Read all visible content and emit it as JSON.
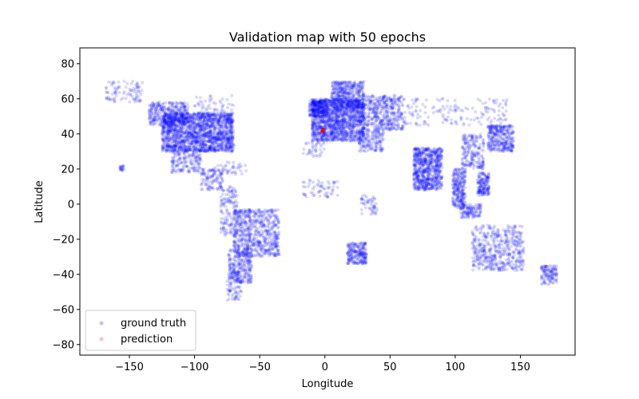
{
  "chart_data": {
    "type": "scatter",
    "title": "Validation map with 50 epochs",
    "xlabel": "Longitude",
    "ylabel": "Latitude",
    "xlim": [
      -188,
      192
    ],
    "ylim": [
      -86,
      89
    ],
    "xticks": [
      -150,
      -100,
      -50,
      0,
      50,
      100,
      150
    ],
    "yticks": [
      -80,
      -60,
      -40,
      -20,
      0,
      20,
      40,
      60,
      80
    ],
    "grid": false,
    "legend_position": "lower-left",
    "series": [
      {
        "name": "ground truth",
        "color": "#0000ff",
        "alpha": 0.15,
        "regions": [
          {
            "lon": [
              -125,
              -70
            ],
            "lat": [
              30,
              52
            ],
            "n": 1700
          },
          {
            "lon": [
              -135,
              -105
            ],
            "lat": [
              45,
              58
            ],
            "n": 320
          },
          {
            "lon": [
              -168,
              -140
            ],
            "lat": [
              58,
              70
            ],
            "n": 90
          },
          {
            "lon": [
              -100,
              -70
            ],
            "lat": [
              50,
              62
            ],
            "n": 60
          },
          {
            "lon": [
              -118,
              -95
            ],
            "lat": [
              18,
              32
            ],
            "n": 180
          },
          {
            "lon": [
              -95,
              -78
            ],
            "lat": [
              8,
              20
            ],
            "n": 110
          },
          {
            "lon": [
              -85,
              -60
            ],
            "lat": [
              17,
              24
            ],
            "n": 40
          },
          {
            "lon": [
              -80,
              -67
            ],
            "lat": [
              -18,
              10
            ],
            "n": 150
          },
          {
            "lon": [
              -70,
              -35
            ],
            "lat": [
              -30,
              -3
            ],
            "n": 650
          },
          {
            "lon": [
              -74,
              -56
            ],
            "lat": [
              -45,
              -25
            ],
            "n": 270
          },
          {
            "lon": [
              -75,
              -64
            ],
            "lat": [
              -55,
              -42
            ],
            "n": 60
          },
          {
            "lon": [
              -10,
              30
            ],
            "lat": [
              36,
              60
            ],
            "n": 1400
          },
          {
            "lon": [
              -12,
              2
            ],
            "lat": [
              50,
              59
            ],
            "n": 180
          },
          {
            "lon": [
              5,
              30
            ],
            "lat": [
              55,
              70
            ],
            "n": 400
          },
          {
            "lon": [
              30,
              60
            ],
            "lat": [
              42,
              62
            ],
            "n": 420
          },
          {
            "lon": [
              60,
              140
            ],
            "lat": [
              45,
              60
            ],
            "n": 160
          },
          {
            "lon": [
              26,
              45
            ],
            "lat": [
              30,
              42
            ],
            "n": 150
          },
          {
            "lon": [
              -17,
              0
            ],
            "lat": [
              27,
              36
            ],
            "n": 40
          },
          {
            "lon": [
              -17,
              10
            ],
            "lat": [
              4,
              14
            ],
            "n": 60
          },
          {
            "lon": [
              28,
              40
            ],
            "lat": [
              -6,
              5
            ],
            "n": 50
          },
          {
            "lon": [
              17,
              32
            ],
            "lat": [
              -34,
              -22
            ],
            "n": 220
          },
          {
            "lon": [
              68,
              90
            ],
            "lat": [
              8,
              32
            ],
            "n": 700
          },
          {
            "lon": [
              98,
              108
            ],
            "lat": [
              -2,
              20
            ],
            "n": 250
          },
          {
            "lon": [
              104,
              120
            ],
            "lat": [
              -8,
              0
            ],
            "n": 120
          },
          {
            "lon": [
              117,
              126
            ],
            "lat": [
              5,
              18
            ],
            "n": 160
          },
          {
            "lon": [
              105,
              122
            ],
            "lat": [
              20,
              40
            ],
            "n": 200
          },
          {
            "lon": [
              125,
              145
            ],
            "lat": [
              30,
              45
            ],
            "n": 320
          },
          {
            "lon": [
              113,
              153
            ],
            "lat": [
              -38,
              -12
            ],
            "n": 480
          },
          {
            "lon": [
              166,
              178
            ],
            "lat": [
              -46,
              -35
            ],
            "n": 120
          },
          {
            "lon": [
              -158,
              -154
            ],
            "lat": [
              19,
              22
            ],
            "n": 20
          }
        ]
      },
      {
        "name": "prediction",
        "color": "#ff0000",
        "alpha": 0.15,
        "points": [
          {
            "x": -2,
            "y": 42
          }
        ]
      }
    ]
  }
}
